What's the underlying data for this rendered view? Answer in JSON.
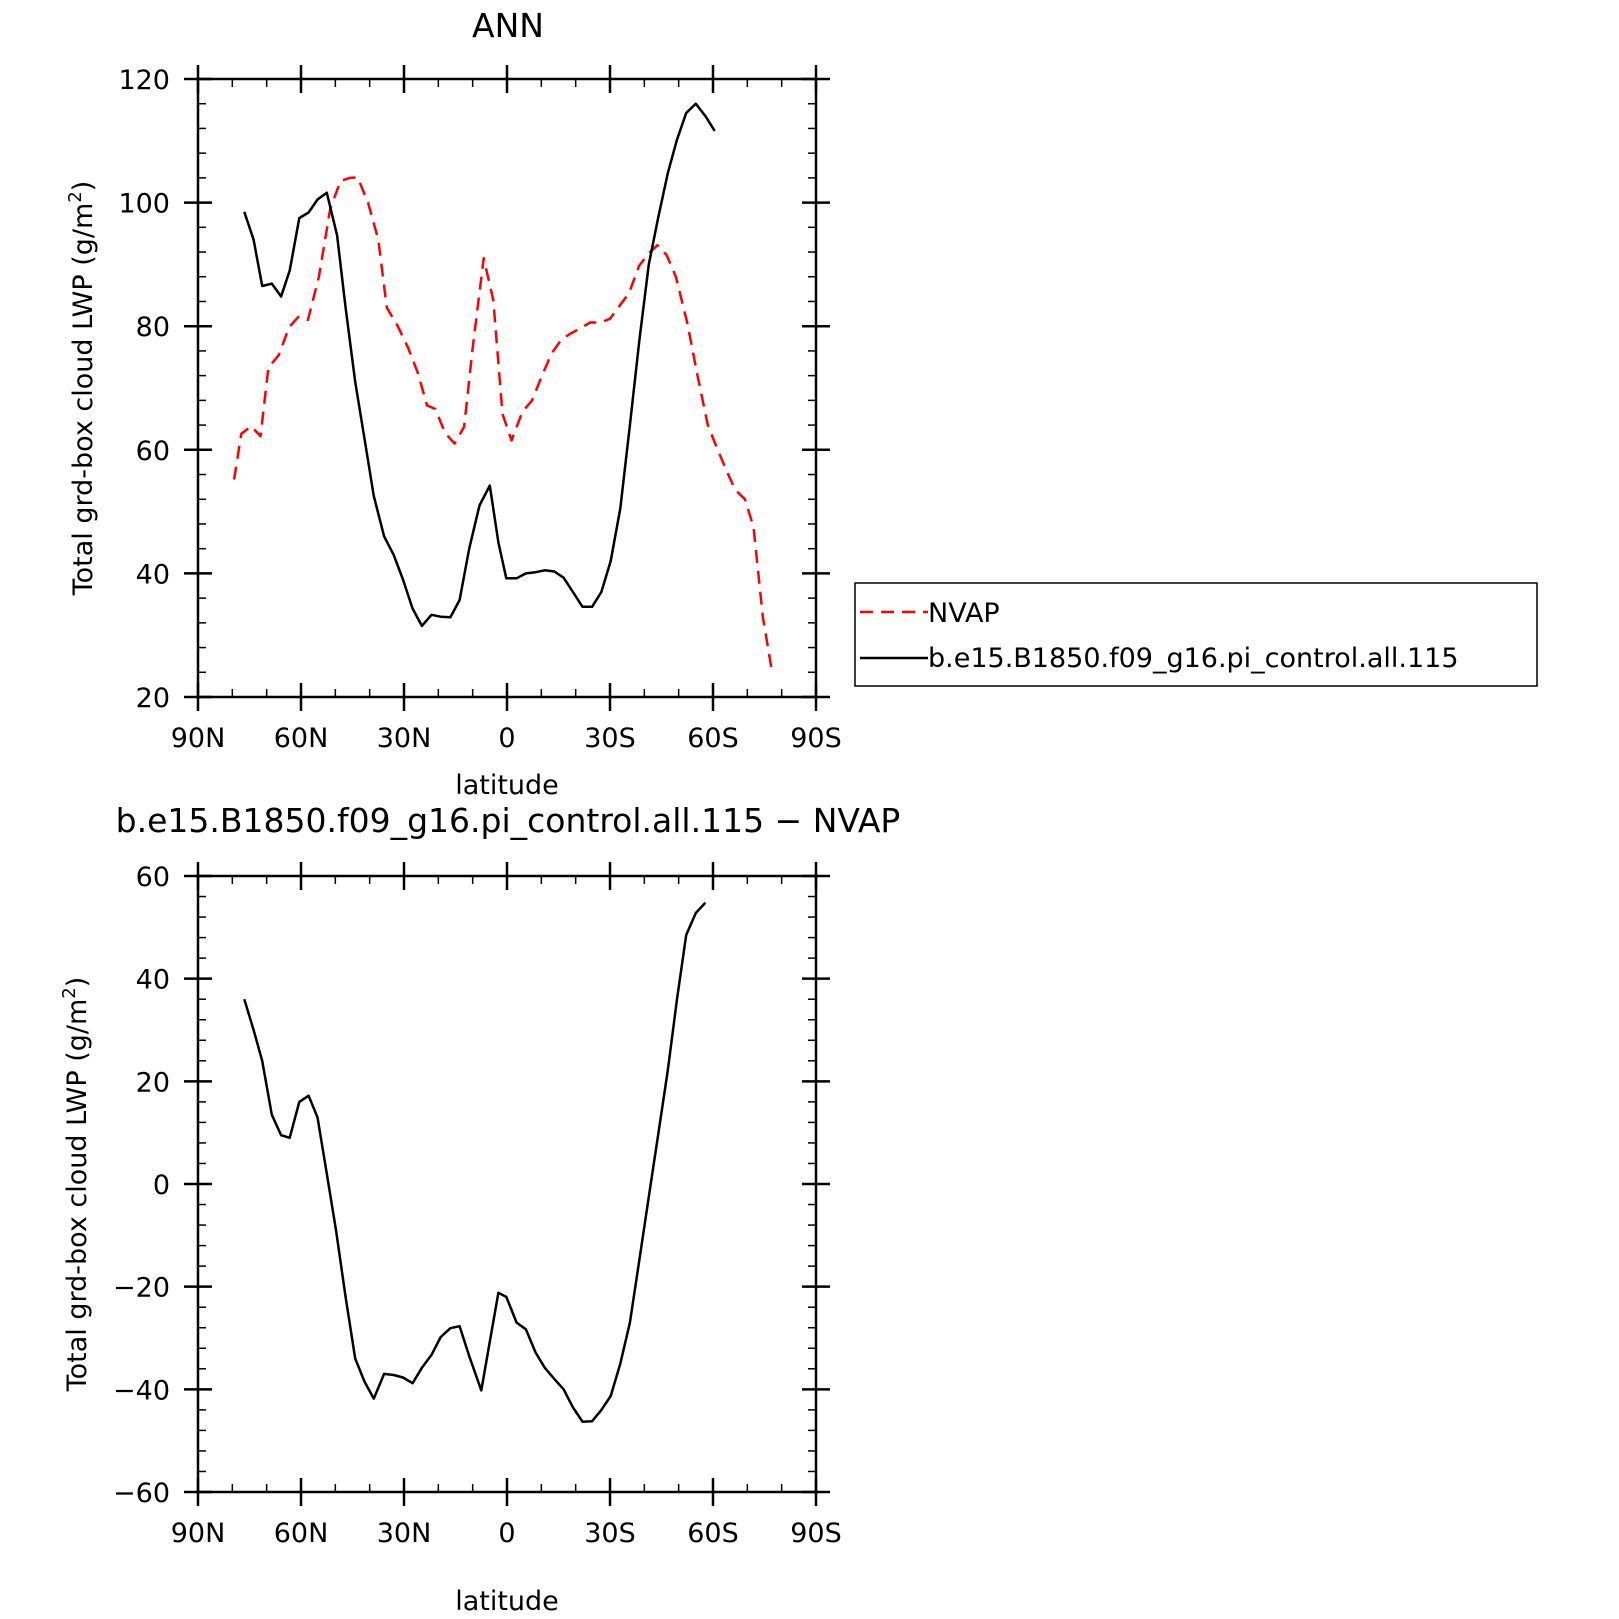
{
  "colors": {
    "nvap": "#ff0000",
    "model": "#000000"
  },
  "chart_data": [
    {
      "type": "line",
      "title": "ANN",
      "xlabel": "latitude",
      "ylabel_main": "Total grd-box cloud LWP ",
      "ylabel_unit_open": "(g/m",
      "ylabel_unit_sup": "2",
      "ylabel_unit_close": ")",
      "xlim": [
        90,
        -90
      ],
      "ylim": [
        20,
        120
      ],
      "xticks": [
        {
          "value": 90,
          "label": "90N"
        },
        {
          "value": 60,
          "label": "60N"
        },
        {
          "value": 30,
          "label": "30N"
        },
        {
          "value": 0,
          "label": "0"
        },
        {
          "value": -30,
          "label": "30S"
        },
        {
          "value": -60,
          "label": "60S"
        },
        {
          "value": -90,
          "label": "90S"
        }
      ],
      "yticks": [
        {
          "value": 20,
          "label": "20"
        },
        {
          "value": 40,
          "label": "40"
        },
        {
          "value": 60,
          "label": "60"
        },
        {
          "value": 80,
          "label": "80"
        },
        {
          "value": 100,
          "label": "100"
        },
        {
          "value": 120,
          "label": "120"
        }
      ],
      "legend_placement": "right",
      "series": [
        {
          "name": "NVAP",
          "color": "#ff0000",
          "dash": true,
          "points": [
            [
              79.5,
              55.2
            ],
            [
              77.4,
              62.6
            ],
            [
              74.5,
              63.8
            ],
            [
              71.8,
              62.2
            ],
            [
              69.5,
              73.3
            ],
            [
              66.5,
              75.3
            ],
            [
              63.5,
              79.8
            ],
            [
              60.8,
              81.5
            ],
            [
              58.0,
              81.0
            ],
            [
              54.8,
              88.0
            ],
            [
              51.5,
              99.0
            ],
            [
              48.5,
              103.5
            ],
            [
              45.8,
              104.0
            ],
            [
              43.5,
              104.1
            ],
            [
              40.5,
              100.0
            ],
            [
              37.5,
              94.0
            ],
            [
              35.0,
              83.0
            ],
            [
              31.8,
              80.0
            ],
            [
              28.8,
              76.5
            ],
            [
              26.0,
              72.5
            ],
            [
              23.3,
              67.2
            ],
            [
              20.9,
              66.6
            ],
            [
              18.0,
              62.7
            ],
            [
              15.3,
              61.0
            ],
            [
              12.5,
              63.7
            ],
            [
              10.0,
              76.5
            ],
            [
              6.8,
              91.0
            ],
            [
              4.0,
              84.2
            ],
            [
              1.3,
              65.8
            ],
            [
              -1.3,
              61.5
            ],
            [
              -4.5,
              66.2
            ],
            [
              -7.3,
              68.0
            ],
            [
              -10.2,
              72.0
            ],
            [
              -13.0,
              75.6
            ],
            [
              -15.8,
              77.8
            ],
            [
              -18.5,
              78.8
            ],
            [
              -21.5,
              79.7
            ],
            [
              -24.2,
              80.6
            ],
            [
              -27.2,
              80.6
            ],
            [
              -30.0,
              81.2
            ],
            [
              -32.8,
              83.3
            ],
            [
              -35.5,
              85.3
            ],
            [
              -38.5,
              89.8
            ],
            [
              -41.3,
              91.8
            ],
            [
              -43.8,
              93.1
            ],
            [
              -46.5,
              91.5
            ],
            [
              -49.2,
              88.0
            ],
            [
              -52.5,
              80.5
            ],
            [
              -55.5,
              72.0
            ],
            [
              -58.5,
              64.0
            ],
            [
              -60.8,
              60.8
            ],
            [
              -63.8,
              56.8
            ],
            [
              -66.5,
              53.5
            ],
            [
              -69.3,
              52.0
            ],
            [
              -71.8,
              47.5
            ],
            [
              -74.5,
              33.0
            ],
            [
              -77.2,
              24.0
            ]
          ]
        },
        {
          "name": "b.e15.B1850.f09_g16.pi_control.all.115",
          "color": "#000000",
          "dash": false,
          "points": [
            [
              76.5,
              98.5
            ],
            [
              73.8,
              94.0
            ],
            [
              71.3,
              86.5
            ],
            [
              68.5,
              86.9
            ],
            [
              65.8,
              84.8
            ],
            [
              63.3,
              89.0
            ],
            [
              60.5,
              97.5
            ],
            [
              57.8,
              98.4
            ],
            [
              55.2,
              100.5
            ],
            [
              52.5,
              101.6
            ],
            [
              49.5,
              94.7
            ],
            [
              47.0,
              83.0
            ],
            [
              44.2,
              71.0
            ],
            [
              41.5,
              61.8
            ],
            [
              38.8,
              52.5
            ],
            [
              35.8,
              46.0
            ],
            [
              33.0,
              43.0
            ],
            [
              30.3,
              39.0
            ],
            [
              27.5,
              34.3
            ],
            [
              24.8,
              31.5
            ],
            [
              22.0,
              33.3
            ],
            [
              19.3,
              33.0
            ],
            [
              16.5,
              32.9
            ],
            [
              13.8,
              35.7
            ],
            [
              11.0,
              44.0
            ],
            [
              8.0,
              51.0
            ],
            [
              5.0,
              54.2
            ],
            [
              2.5,
              45.0
            ],
            [
              0.2,
              39.2
            ],
            [
              -2.8,
              39.2
            ],
            [
              -5.5,
              40.0
            ],
            [
              -8.3,
              40.2
            ],
            [
              -11.0,
              40.5
            ],
            [
              -13.8,
              40.3
            ],
            [
              -16.5,
              39.3
            ],
            [
              -19.2,
              37.0
            ],
            [
              -22.0,
              34.6
            ],
            [
              -24.8,
              34.6
            ],
            [
              -27.5,
              37.0
            ],
            [
              -30.2,
              42.0
            ],
            [
              -33.0,
              50.5
            ],
            [
              -35.8,
              64.0
            ],
            [
              -38.5,
              77.5
            ],
            [
              -41.3,
              90.0
            ],
            [
              -44.0,
              97.5
            ],
            [
              -46.8,
              104.7
            ],
            [
              -49.5,
              110.2
            ],
            [
              -52.2,
              114.5
            ],
            [
              -55.0,
              116.0
            ],
            [
              -57.8,
              114.0
            ],
            [
              -60.5,
              111.6
            ]
          ]
        }
      ]
    },
    {
      "type": "line",
      "title": "b.e15.B1850.f09_g16.pi_control.all.115 − NVAP",
      "xlabel": "latitude",
      "ylabel_main": "Total grd-box cloud LWP ",
      "ylabel_unit_open": "(g/m",
      "ylabel_unit_sup": "2",
      "ylabel_unit_close": ")",
      "xlim": [
        90,
        -90
      ],
      "ylim": [
        -60,
        60
      ],
      "xticks": [
        {
          "value": 90,
          "label": "90N"
        },
        {
          "value": 60,
          "label": "60N"
        },
        {
          "value": 30,
          "label": "30N"
        },
        {
          "value": 0,
          "label": "0"
        },
        {
          "value": -30,
          "label": "30S"
        },
        {
          "value": -60,
          "label": "60S"
        },
        {
          "value": -90,
          "label": "90S"
        }
      ],
      "yticks": [
        {
          "value": -60,
          "label": "−60"
        },
        {
          "value": -40,
          "label": "−40"
        },
        {
          "value": -20,
          "label": "−20"
        },
        {
          "value": 0,
          "label": "0"
        },
        {
          "value": 20,
          "label": "20"
        },
        {
          "value": 40,
          "label": "40"
        },
        {
          "value": 60,
          "label": "60"
        }
      ],
      "series": [
        {
          "color": "#000000",
          "dash": false,
          "points": [
            [
              76.5,
              36.0
            ],
            [
              73.8,
              30.0
            ],
            [
              71.3,
              24.0
            ],
            [
              68.5,
              13.5
            ],
            [
              65.8,
              9.5
            ],
            [
              63.3,
              9.0
            ],
            [
              60.5,
              16.0
            ],
            [
              57.8,
              17.2
            ],
            [
              55.2,
              13.0
            ],
            [
              52.5,
              2.0
            ],
            [
              49.8,
              -9.0
            ],
            [
              47.0,
              -22.0
            ],
            [
              44.2,
              -34.0
            ],
            [
              41.5,
              -38.5
            ],
            [
              38.8,
              -41.8
            ],
            [
              35.8,
              -37.0
            ],
            [
              33.0,
              -37.2
            ],
            [
              30.3,
              -37.7
            ],
            [
              27.5,
              -38.8
            ],
            [
              24.8,
              -35.8
            ],
            [
              22.0,
              -33.3
            ],
            [
              19.3,
              -29.8
            ],
            [
              16.5,
              -28.1
            ],
            [
              13.8,
              -27.7
            ],
            [
              11.0,
              -33.5
            ],
            [
              7.5,
              -40.2
            ],
            [
              5.0,
              -30.7
            ],
            [
              2.5,
              -21.2
            ],
            [
              0.2,
              -22.0
            ],
            [
              -2.8,
              -27.0
            ],
            [
              -5.5,
              -28.3
            ],
            [
              -8.3,
              -32.8
            ],
            [
              -11.0,
              -35.8
            ],
            [
              -13.8,
              -38.0
            ],
            [
              -16.5,
              -40.0
            ],
            [
              -19.2,
              -43.5
            ],
            [
              -22.0,
              -46.3
            ],
            [
              -24.8,
              -46.2
            ],
            [
              -27.5,
              -44.0
            ],
            [
              -30.2,
              -41.3
            ],
            [
              -33.0,
              -35.0
            ],
            [
              -35.8,
              -27.0
            ],
            [
              -38.5,
              -15.0
            ],
            [
              -41.3,
              -2.5
            ],
            [
              -44.0,
              9.5
            ],
            [
              -46.8,
              22.0
            ],
            [
              -49.5,
              36.0
            ],
            [
              -52.2,
              48.5
            ],
            [
              -55.0,
              52.8
            ],
            [
              -57.8,
              54.8
            ]
          ]
        }
      ]
    }
  ]
}
